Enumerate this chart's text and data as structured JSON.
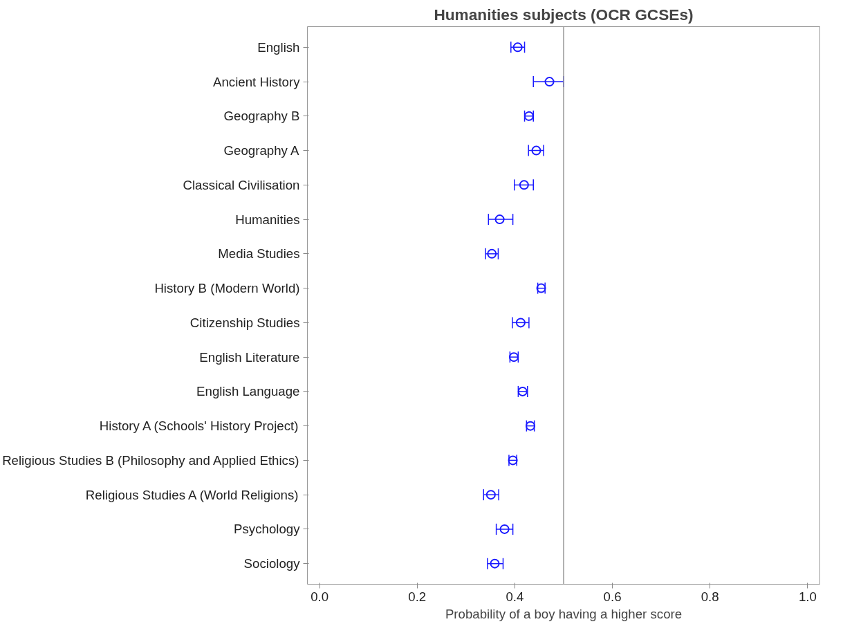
{
  "chart_data": {
    "type": "scatter",
    "orientation": "horizontal",
    "title": "Humanities subjects (OCR GCSEs)",
    "xlabel": "Probability of a boy having a higher score",
    "categories": [
      "English",
      "Ancient History",
      "Geography B",
      "Geography A",
      "Classical Civilisation",
      "Humanities",
      "Media Studies",
      "History B (Modern World)",
      "Citizenship Studies",
      "English Literature",
      "English Language",
      "History A (Schools' History Project)",
      "Religious Studies B (Philosophy and Applied Ethics)",
      "Religious Studies A (World Religions)",
      "Psychology",
      "Sociology"
    ],
    "series": [
      {
        "color": "#1a1aff",
        "values": [
          0.406,
          0.471,
          0.429,
          0.444,
          0.419,
          0.369,
          0.353,
          0.454,
          0.412,
          0.398,
          0.416,
          0.432,
          0.396,
          0.351,
          0.379,
          0.359
        ],
        "errors": [
          [
            0.392,
            0.42
          ],
          [
            0.438,
            0.5
          ],
          [
            0.42,
            0.438
          ],
          [
            0.428,
            0.459
          ],
          [
            0.399,
            0.438
          ],
          [
            0.346,
            0.396
          ],
          [
            0.34,
            0.366
          ],
          [
            0.447,
            0.462
          ],
          [
            0.395,
            0.429
          ],
          [
            0.39,
            0.407
          ],
          [
            0.407,
            0.426
          ],
          [
            0.424,
            0.44
          ],
          [
            0.388,
            0.404
          ],
          [
            0.336,
            0.367
          ],
          [
            0.362,
            0.396
          ],
          [
            0.344,
            0.376
          ]
        ]
      }
    ],
    "xlim": [
      -0.025,
      1.025
    ],
    "xticks": [
      {
        "value": 0,
        "label": "0.0"
      },
      0.2,
      0.4,
      0.6,
      0.8,
      {
        "value": 1,
        "label": "1.0"
      }
    ],
    "ref_lines": [
      {
        "axis": "x",
        "value": 0.5,
        "color": "#999999"
      }
    ],
    "marker": "circle",
    "grid": false
  }
}
